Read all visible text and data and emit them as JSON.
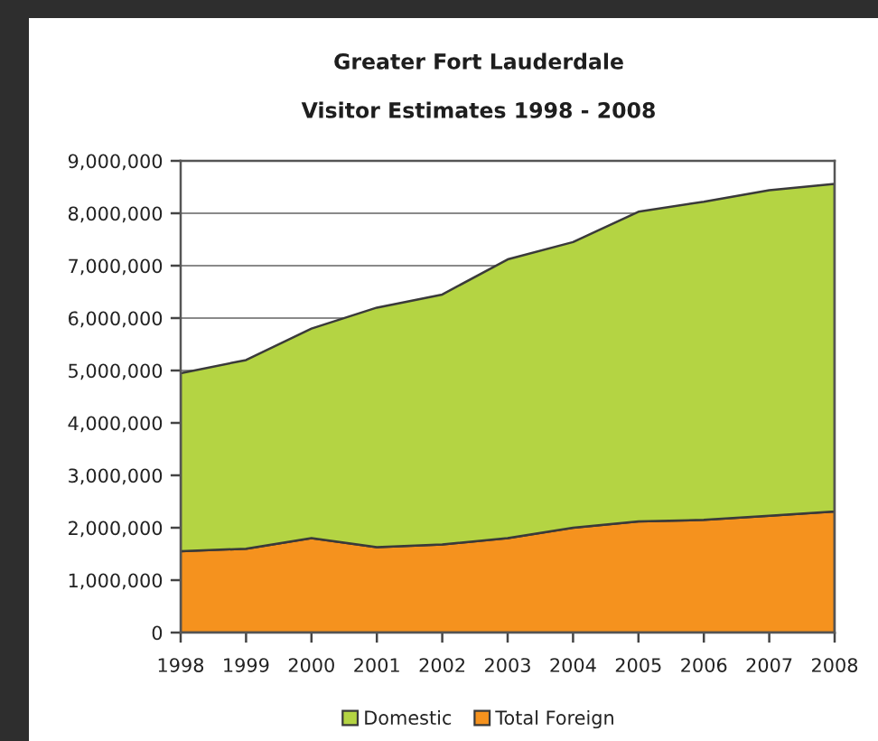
{
  "chart_data": {
    "type": "area",
    "title": "Greater Fort Lauderdale",
    "subtitle": "Visitor Estimates 1998 - 2008",
    "categories": [
      "1998",
      "1999",
      "2000",
      "2001",
      "2002",
      "2003",
      "2004",
      "2005",
      "2006",
      "2007",
      "2008"
    ],
    "stacked": true,
    "series": [
      {
        "name": "Total Foreign",
        "color": "#f5921e",
        "values": [
          1550000,
          1600000,
          1800000,
          1630000,
          1680000,
          1800000,
          2000000,
          2120000,
          2150000,
          2230000,
          2310000
        ]
      },
      {
        "name": "Domestic",
        "color": "#b4d443",
        "values": [
          3400000,
          3600000,
          4000000,
          4570000,
          4770000,
          5320000,
          5450000,
          5910000,
          6070000,
          6210000,
          6250000
        ]
      }
    ],
    "ylim": [
      0,
      9000000
    ],
    "yticks": [
      {
        "value": 0,
        "label": "0"
      },
      {
        "value": 1000000,
        "label": "1,000,000"
      },
      {
        "value": 2000000,
        "label": "2,000,000"
      },
      {
        "value": 3000000,
        "label": "3,000,000"
      },
      {
        "value": 4000000,
        "label": "4,000,000"
      },
      {
        "value": 5000000,
        "label": "5,000,000"
      },
      {
        "value": 6000000,
        "label": "6,000,000"
      },
      {
        "value": 7000000,
        "label": "7,000,000"
      },
      {
        "value": 8000000,
        "label": "8,000,000"
      },
      {
        "value": 9000000,
        "label": "9,000,000"
      }
    ],
    "grid": "y",
    "legend": "bottom"
  }
}
